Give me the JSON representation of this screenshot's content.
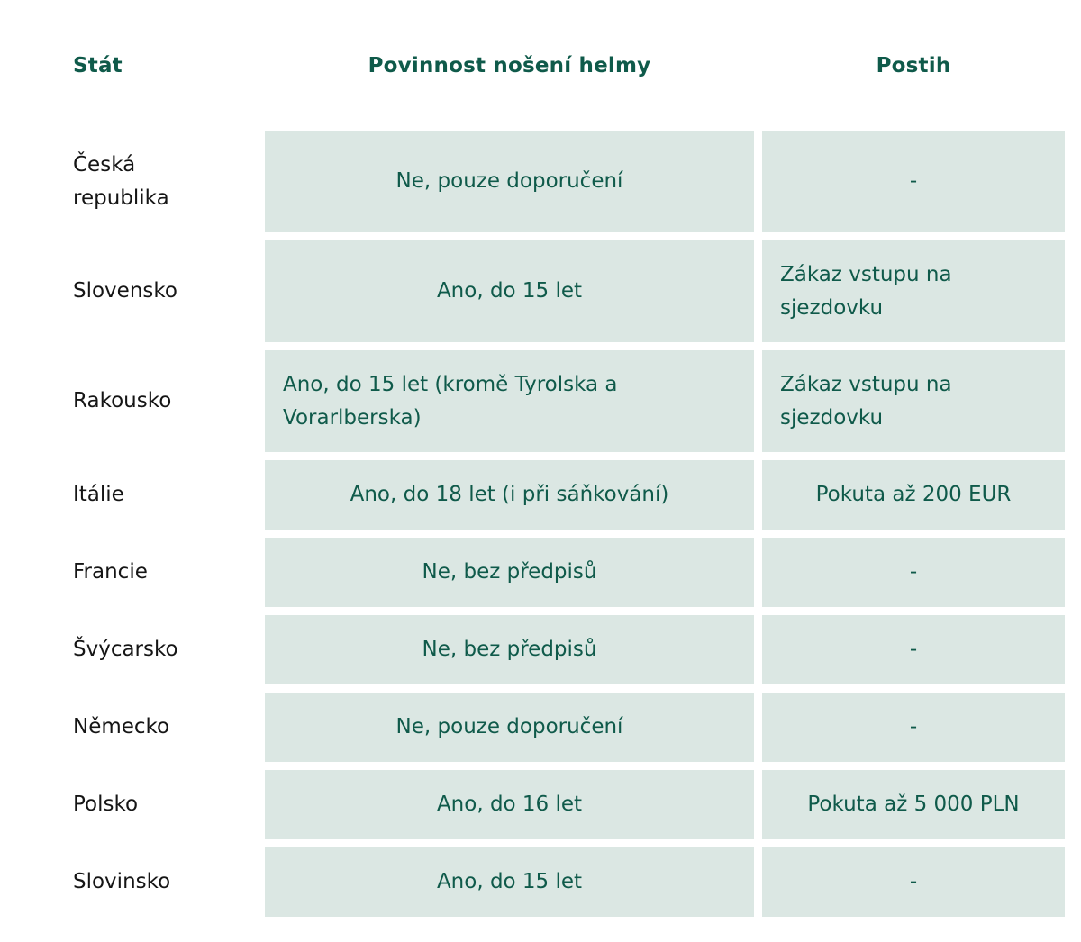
{
  "headers": {
    "state": "Stát",
    "obligation": "Povinnost nošení helmy",
    "penalty": "Postih"
  },
  "rows": [
    {
      "state": "Česká republika",
      "obligation": "Ne, pouze doporučení",
      "penalty": "-",
      "obligation_align": "center",
      "penalty_align": "center",
      "tall": true
    },
    {
      "state": "Slovensko",
      "obligation": "Ano, do 15 let",
      "penalty": "Zákaz vstupu na sjezdovku",
      "obligation_align": "center",
      "penalty_align": "left",
      "tall": true
    },
    {
      "state": "Rakousko",
      "obligation": "Ano, do 15 let (kromě Tyrolska a Vorarlberska)",
      "penalty": "Zákaz vstupu na sjezdovku",
      "obligation_align": "left",
      "penalty_align": "left",
      "tall": true
    },
    {
      "state": "Itálie",
      "obligation": "Ano, do 18 let (i při sáňkování)",
      "penalty": "Pokuta až 200 EUR",
      "obligation_align": "center",
      "penalty_align": "center",
      "tall": false
    },
    {
      "state": "Francie",
      "obligation": "Ne, bez předpisů",
      "penalty": "-",
      "obligation_align": "center",
      "penalty_align": "center",
      "tall": false
    },
    {
      "state": "Švýcarsko",
      "obligation": "Ne, bez předpisů",
      "penalty": "-",
      "obligation_align": "center",
      "penalty_align": "center",
      "tall": false
    },
    {
      "state": "Německo",
      "obligation": "Ne, pouze doporučení",
      "penalty": "-",
      "obligation_align": "center",
      "penalty_align": "center",
      "tall": false
    },
    {
      "state": "Polsko",
      "obligation": "Ano, do 16 let",
      "penalty": "Pokuta až 5 000 PLN",
      "obligation_align": "center",
      "penalty_align": "center",
      "tall": false
    },
    {
      "state": "Slovinsko",
      "obligation": "Ano, do 15 let",
      "penalty": "-",
      "obligation_align": "center",
      "penalty_align": "center",
      "tall": false
    }
  ],
  "colors": {
    "header_text": "#0f5a4a",
    "cell_background": "#dbe7e3",
    "cell_text": "#0f5a4a",
    "state_text": "#151515"
  }
}
